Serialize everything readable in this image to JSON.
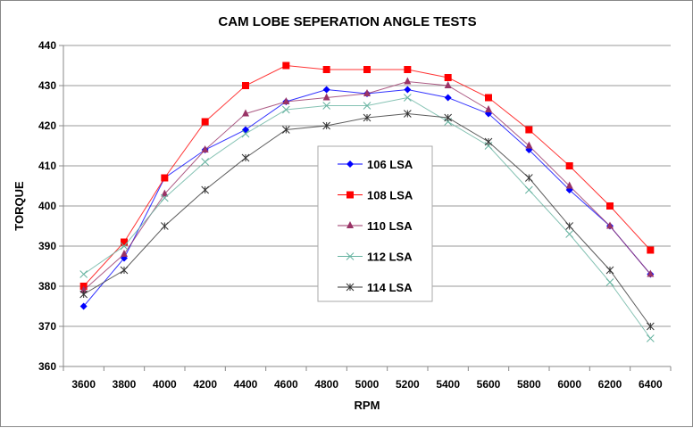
{
  "chart_data": {
    "type": "line",
    "title": "CAM LOBE SEPERATION ANGLE TESTS",
    "xlabel": "RPM",
    "ylabel": "TORQUE",
    "ylim": [
      360,
      440
    ],
    "yticks": [
      "360",
      "370",
      "380",
      "390",
      "400",
      "410",
      "420",
      "430",
      "440"
    ],
    "grid": true,
    "legend": "center",
    "categories": [
      "3600",
      "3800",
      "4000",
      "4200",
      "4400",
      "4600",
      "4800",
      "5000",
      "5200",
      "5400",
      "5600",
      "5800",
      "6000",
      "6200",
      "6400"
    ],
    "series": [
      {
        "name": "106 LSA",
        "color": "#0000ff",
        "marker": "diamond",
        "values": [
          375,
          387,
          407,
          414,
          419,
          426,
          429,
          428,
          429,
          427,
          423,
          414,
          404,
          395,
          383
        ]
      },
      {
        "name": "108 LSA",
        "color": "#ff0000",
        "marker": "square",
        "values": [
          380,
          391,
          407,
          421,
          430,
          435,
          434,
          434,
          434,
          432,
          427,
          419,
          410,
          400,
          389
        ]
      },
      {
        "name": "110 LSA",
        "color": "#993366",
        "marker": "triangle",
        "values": [
          379,
          388,
          403,
          414,
          423,
          426,
          427,
          428,
          431,
          430,
          424,
          415,
          405,
          395,
          383
        ]
      },
      {
        "name": "112 LSA",
        "color": "#66b3a0",
        "marker": "x",
        "values": [
          383,
          390,
          402,
          411,
          418,
          424,
          425,
          425,
          427,
          421,
          415,
          404,
          393,
          381,
          367
        ]
      },
      {
        "name": "114 LSA",
        "color": "#333333",
        "marker": "star",
        "values": [
          378,
          384,
          395,
          404,
          412,
          419,
          420,
          422,
          423,
          422,
          416,
          407,
          395,
          384,
          370
        ]
      }
    ]
  }
}
